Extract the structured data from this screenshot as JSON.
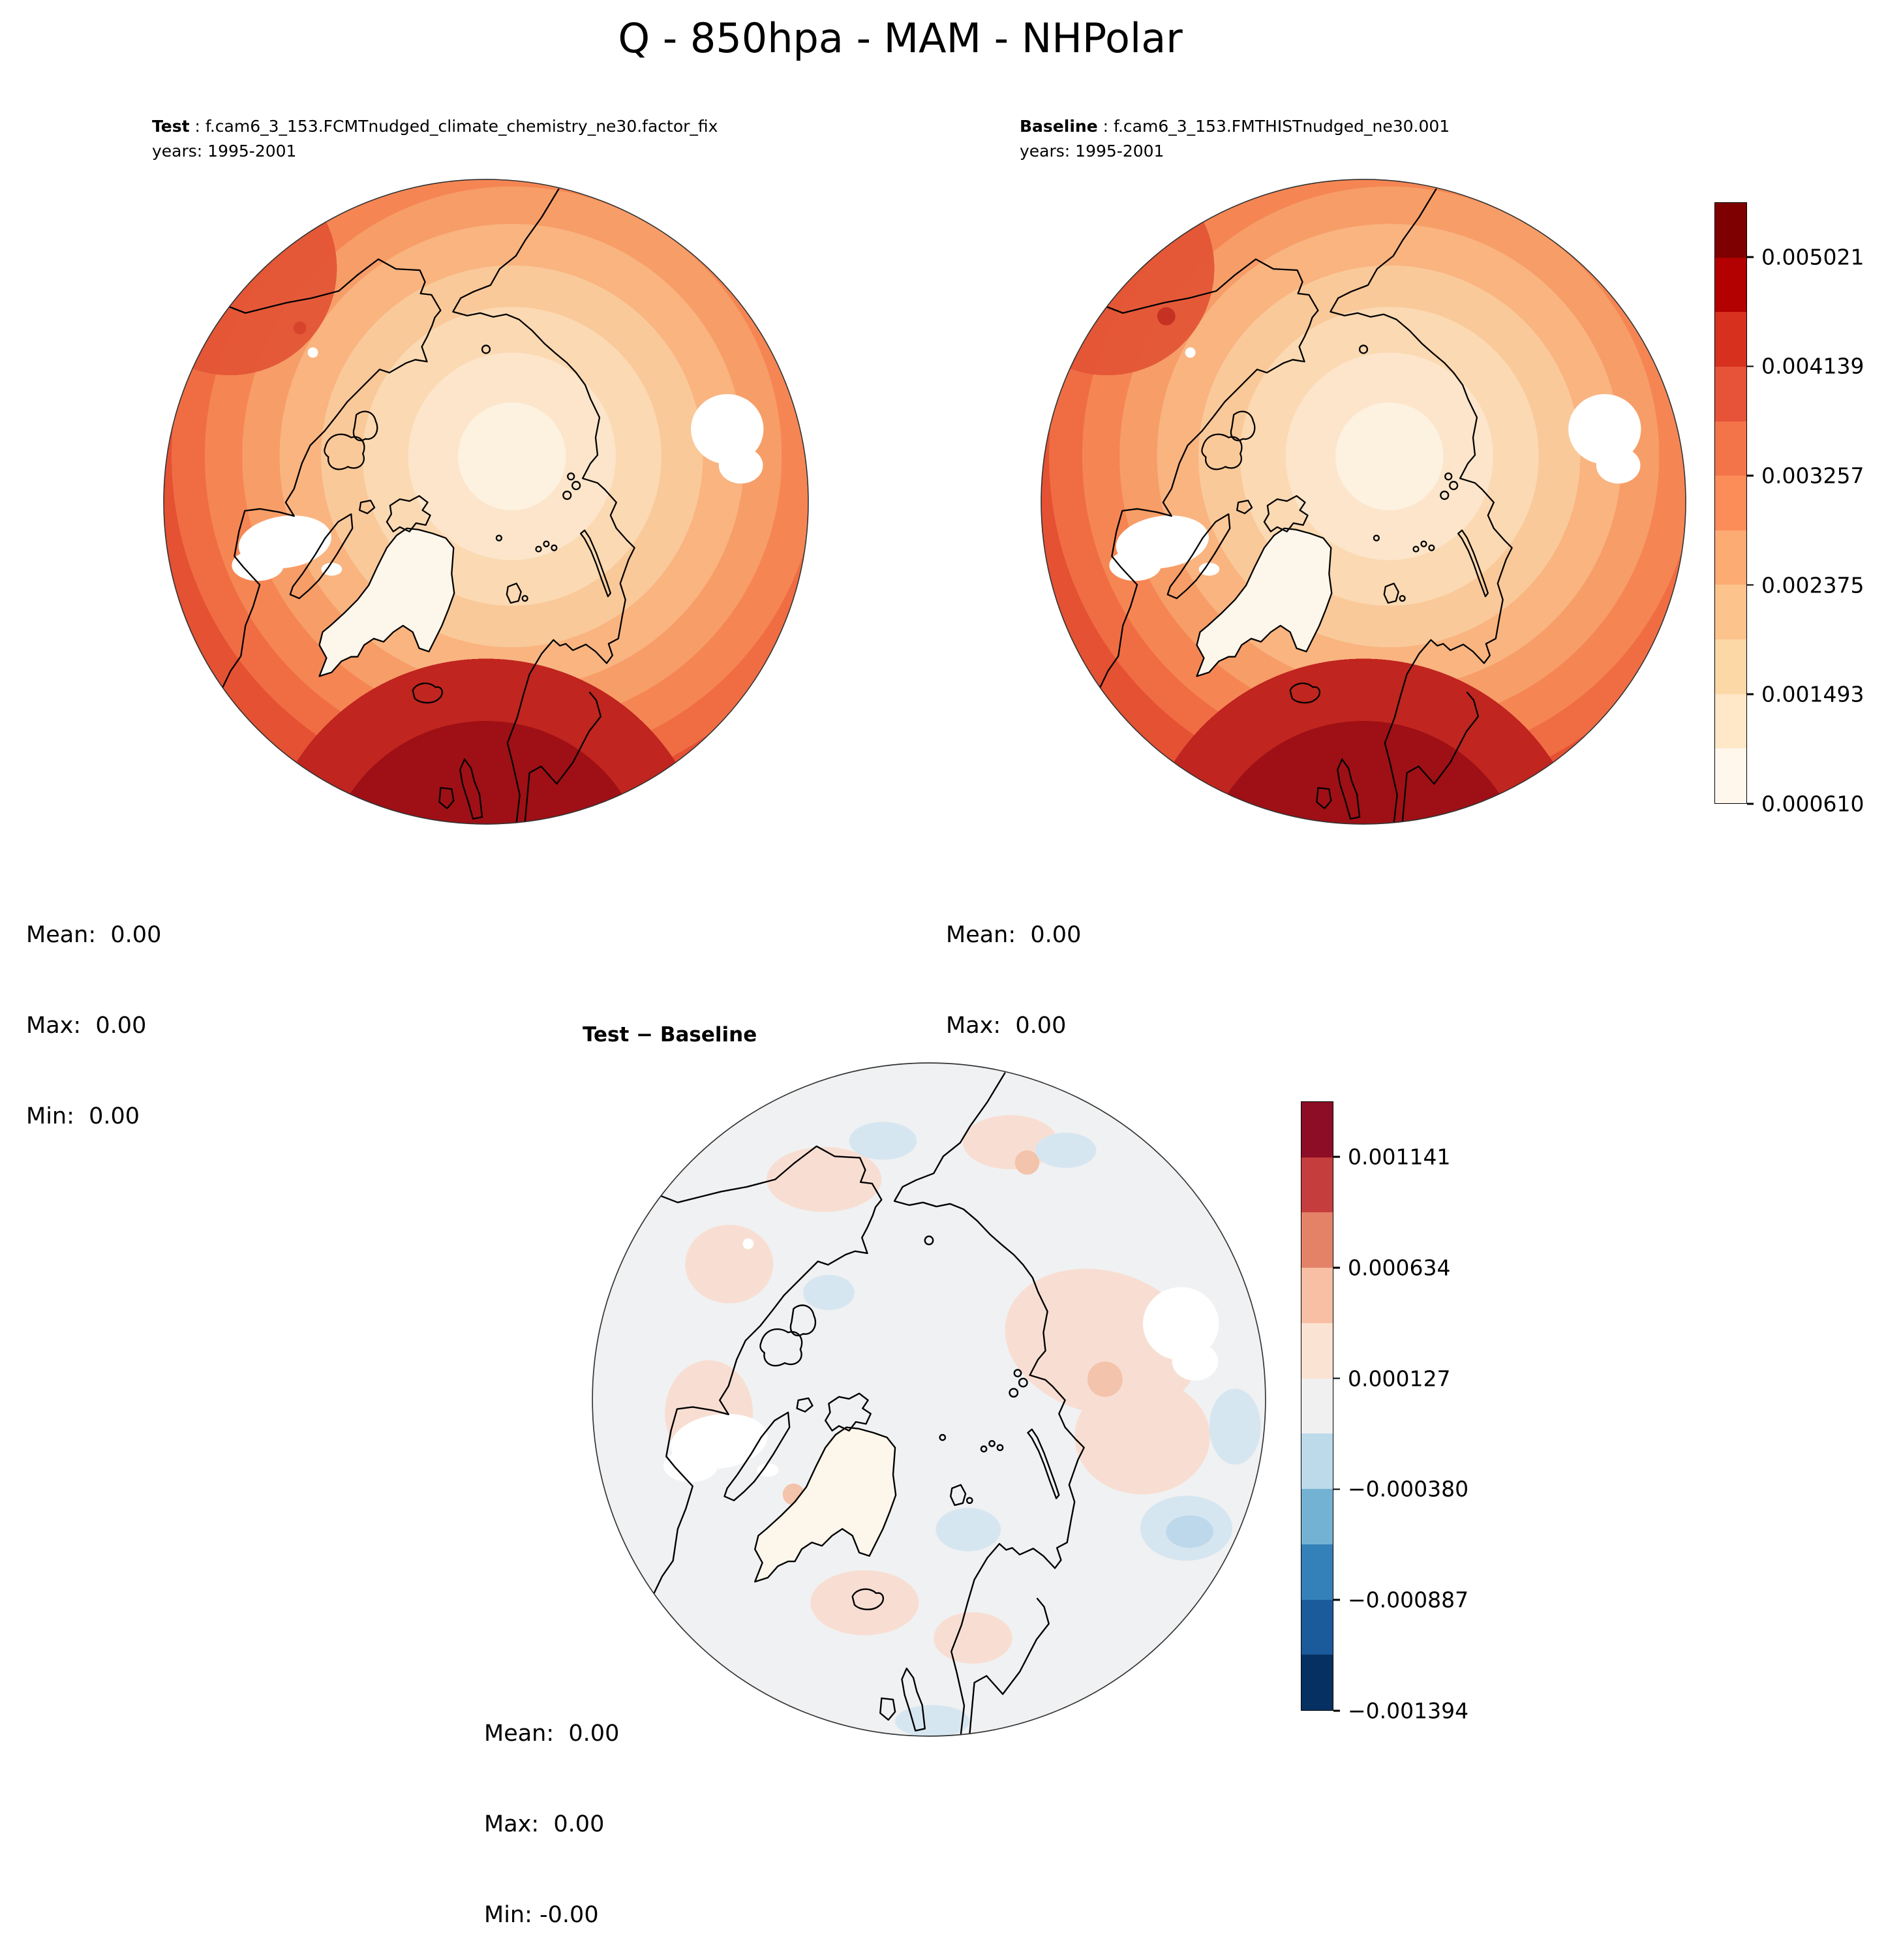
{
  "title": "Q - 850hpa - MAM - NHPolar",
  "panels": {
    "test": {
      "label": "Test",
      "run": " : f.cam6_3_153.FCMTnudged_climate_chemistry_ne30.factor_fix",
      "years": "years: 1995-2001",
      "stats": [
        "Mean:  0.00",
        "Max:  0.00",
        "Min:  0.00"
      ]
    },
    "baseline": {
      "label": "Baseline",
      "run": " : f.cam6_3_153.FMTHISTnudged_ne30.001",
      "years": "years: 1995-2001",
      "stats": [
        "Mean:  0.00",
        "Max:  0.00",
        "Min:  0.00"
      ]
    },
    "diff": {
      "title": "Test − Baseline",
      "stats": [
        "Mean:  0.00",
        "Max:  0.00",
        "Min: -0.00"
      ]
    }
  },
  "colorbars": {
    "main": {
      "vmin": 0.00061,
      "vmax": 0.005462,
      "colors_bottom_to_top": [
        "#fff7ec",
        "#fee8c8",
        "#fdd8a7",
        "#fdc38c",
        "#fcab73",
        "#fc8d59",
        "#f4744a",
        "#e65338",
        "#d7301f",
        "#b30000",
        "#7f0000"
      ],
      "ticks": [
        {
          "label": "0.005021",
          "value": 0.005021
        },
        {
          "label": "0.004139",
          "value": 0.004139
        },
        {
          "label": "0.003257",
          "value": 0.003257
        },
        {
          "label": "0.002375",
          "value": 0.002375
        },
        {
          "label": "0.001493",
          "value": 0.001493
        },
        {
          "label": "0.000610",
          "value": 0.00061
        }
      ]
    },
    "diff": {
      "vmin": -0.001394,
      "vmax": 0.001395,
      "colors_bottom_to_top": [
        "#053061",
        "#1b5a9b",
        "#3480b9",
        "#74b2d4",
        "#bcdaea",
        "#f0f0f0",
        "#fbe3d4",
        "#f8bfa4",
        "#e48268",
        "#c53e3d",
        "#8c0d25"
      ],
      "ticks": [
        {
          "label": "0.001141",
          "value": 0.001141
        },
        {
          "label": "0.000634",
          "value": 0.000634
        },
        {
          "label": "0.000127",
          "value": 0.000127
        },
        {
          "label": "−0.000380",
          "value": -0.00038
        },
        {
          "label": "−0.000887",
          "value": -0.000887
        },
        {
          "label": "−0.001394",
          "value": -0.001394
        }
      ]
    }
  },
  "chart_data": [
    {
      "type": "heatmap",
      "panel": "Test",
      "variable": "Q",
      "level": "850hpa",
      "season": "MAM",
      "region": "NHPolar",
      "projection": "north-polar-stereographic",
      "run": "f.cam6_3_153.FCMTnudged_climate_chemistry_ne30.factor_fix",
      "years": "1995-2001",
      "colormap": "OrRd",
      "colorbar_ticks": [
        0.00061,
        0.001493,
        0.002375,
        0.003257,
        0.004139,
        0.005021
      ],
      "stats": {
        "mean": 0.0,
        "max": 0.0,
        "min": 0.0
      },
      "pattern": "low Q (pale) over central Arctic, increasing Q (dark red) toward mid-latitudes, darkest over North Atlantic/Europe sector; white = masked terrain"
    },
    {
      "type": "heatmap",
      "panel": "Baseline",
      "variable": "Q",
      "level": "850hpa",
      "season": "MAM",
      "region": "NHPolar",
      "projection": "north-polar-stereographic",
      "run": "f.cam6_3_153.FMTHISTnudged_ne30.001",
      "years": "1995-2001",
      "colormap": "OrRd",
      "colorbar_ticks": [
        0.00061,
        0.001493,
        0.002375,
        0.003257,
        0.004139,
        0.005021
      ],
      "stats": {
        "mean": 0.0,
        "max": 0.0,
        "min": 0.0
      },
      "pattern": "nearly identical to Test panel"
    },
    {
      "type": "heatmap",
      "panel": "Test − Baseline",
      "variable": "Q difference",
      "level": "850hpa",
      "season": "MAM",
      "region": "NHPolar",
      "projection": "north-polar-stereographic",
      "colormap": "RdBu_r",
      "colorbar_ticks": [
        -0.001394,
        -0.000887,
        -0.00038,
        0.000127,
        0.000634,
        0.001141
      ],
      "stats": {
        "mean": 0.0,
        "max": 0.0,
        "min": -0.0
      },
      "pattern": "near-zero differences (light gray) with scattered faint warm (pink) and cool (light blue) anomalies"
    }
  ]
}
